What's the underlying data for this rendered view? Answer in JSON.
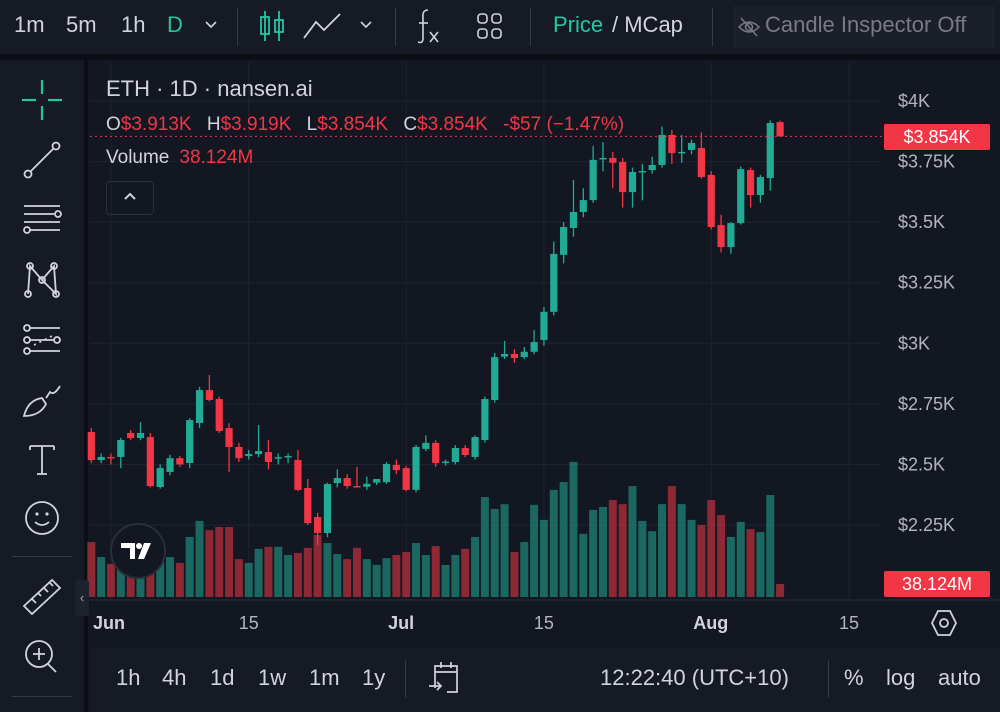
{
  "topbar": {
    "intervals": [
      "1m",
      "5m",
      "1h",
      "D"
    ],
    "active_interval": "D",
    "price_label": "Price",
    "mcap_label": "/ MCap",
    "inspector_label": "Candle Inspector Off",
    "icons": [
      "chevron-down-icon",
      "candlestick-icon",
      "line-chart-icon",
      "chevron-down-icon",
      "function-fx-icon",
      "layout-grid-icon",
      "eye-off-icon"
    ]
  },
  "left_toolbar": {
    "tools": [
      "crosshair",
      "trend-line",
      "horizontal-lines",
      "pattern",
      "fib-retracement",
      "brush",
      "text",
      "emoji",
      "ruler",
      "zoom-in"
    ]
  },
  "legend": {
    "title": "ETH · 1D · nansen.ai",
    "o_label": "O",
    "o_value": "$3.913K",
    "h_label": "H",
    "h_value": "$3.919K",
    "l_label": "L",
    "l_value": "$3.854K",
    "c_label": "C",
    "c_value": "$3.854K",
    "change": "-$57 (−1.47%)",
    "volume_label": "Volume",
    "volume_value": "38.124M",
    "collapse_glyph": "^"
  },
  "price_tag": "$3.854K",
  "volume_tag": "38.124M",
  "colors": {
    "up": "#22ab94",
    "down": "#f23645",
    "background": "#131722",
    "accent": "#22c8a0"
  },
  "bottombar": {
    "ranges": [
      "1h",
      "4h",
      "1d",
      "1w",
      "1m",
      "1y"
    ],
    "time": "12:22:40 (UTC+10)",
    "percent": "%",
    "log": "log",
    "auto": "auto"
  },
  "chart_data": {
    "type": "candlestick",
    "title": "ETH · 1D · nansen.ai",
    "y_ticks": [
      "$4K",
      "$3.75K",
      "$3.5K",
      "$3.25K",
      "$3K",
      "$2.75K",
      "$2.5K",
      "$2.25K"
    ],
    "y_tick_values": [
      4000,
      3750,
      3500,
      3250,
      3000,
      2750,
      2500,
      2250
    ],
    "x_ticks": [
      "Jun",
      "15",
      "Jul",
      "15",
      "Aug",
      "15"
    ],
    "x_tick_dates": [
      "Jun 1",
      "Jun 15",
      "Jul 1",
      "Jul 15",
      "Aug 1",
      "Aug 15"
    ],
    "grid": true,
    "columns": [
      "date",
      "open",
      "high",
      "low",
      "close",
      "volume_M"
    ],
    "candles": [
      [
        "May 30",
        2634,
        2650,
        2505,
        2518,
        161
      ],
      [
        "May 31",
        2518,
        2545,
        2505,
        2531,
        117
      ],
      [
        "Jun 1",
        2531,
        2545,
        2500,
        2528,
        97
      ],
      [
        "Jun 2",
        2531,
        2610,
        2485,
        2601,
        82
      ],
      [
        "Jun 3",
        2630,
        2642,
        2600,
        2609,
        64
      ],
      [
        "Jun 4",
        2609,
        2675,
        2600,
        2630,
        64
      ],
      [
        "Jun 5",
        2613,
        2630,
        2405,
        2411,
        73
      ],
      [
        "Jun 6",
        2407,
        2500,
        2400,
        2485,
        111
      ],
      [
        "Jun 7",
        2469,
        2540,
        2455,
        2526,
        117
      ],
      [
        "Jun 8",
        2526,
        2535,
        2490,
        2500,
        100
      ],
      [
        "Jun 9",
        2506,
        2690,
        2485,
        2683,
        176
      ],
      [
        "Jun 10",
        2671,
        2820,
        2650,
        2807,
        223
      ],
      [
        "Jun 11",
        2807,
        2869,
        2760,
        2766,
        196
      ],
      [
        "Jun 12",
        2770,
        2780,
        2630,
        2638,
        205
      ],
      [
        "Jun 13",
        2650,
        2670,
        2470,
        2572,
        205
      ],
      [
        "Jun 14",
        2572,
        2590,
        2510,
        2526,
        111
      ],
      [
        "Jun 15",
        2535,
        2560,
        2520,
        2543,
        100
      ],
      [
        "Jun 16",
        2543,
        2663,
        2530,
        2555,
        141
      ],
      [
        "Jun 17",
        2551,
        2600,
        2480,
        2510,
        147
      ],
      [
        "Jun 18",
        2526,
        2545,
        2500,
        2530,
        147
      ],
      [
        "Jun 19",
        2531,
        2545,
        2505,
        2535,
        123
      ],
      [
        "Jun 20",
        2518,
        2560,
        2390,
        2395,
        129
      ],
      [
        "Jun 21",
        2403,
        2440,
        2250,
        2258,
        144
      ],
      [
        "Jun 22",
        2283,
        2300,
        2168,
        2217,
        182
      ],
      [
        "Jun 23",
        2217,
        2425,
        2200,
        2419,
        158
      ],
      [
        "Jun 24",
        2423,
        2480,
        2405,
        2444,
        126
      ],
      [
        "Jun 25",
        2444,
        2460,
        2400,
        2411,
        111
      ],
      [
        "Jun 26",
        2411,
        2490,
        2405,
        2408,
        144
      ],
      [
        "Jun 27",
        2408,
        2450,
        2395,
        2420,
        111
      ],
      [
        "Jun 28",
        2425,
        2440,
        2415,
        2440,
        94
      ],
      [
        "Jun 29",
        2427,
        2510,
        2420,
        2502,
        114
      ],
      [
        "Jun 30",
        2498,
        2520,
        2460,
        2477,
        123
      ],
      [
        "Jul 1",
        2485,
        2495,
        2390,
        2395,
        132
      ],
      [
        "Jul 2",
        2395,
        2580,
        2385,
        2572,
        158
      ],
      [
        "Jul 3",
        2564,
        2620,
        2555,
        2589,
        123
      ],
      [
        "Jul 4",
        2589,
        2600,
        2490,
        2506,
        149
      ],
      [
        "Jul 5",
        2506,
        2520,
        2495,
        2512,
        94
      ],
      [
        "Jul 6",
        2510,
        2580,
        2500,
        2568,
        123
      ],
      [
        "Jul 7",
        2568,
        2580,
        2530,
        2539,
        141
      ],
      [
        "Jul 8",
        2531,
        2620,
        2520,
        2613,
        176
      ],
      [
        "Jul 9",
        2601,
        2780,
        2590,
        2770,
        293
      ],
      [
        "Jul 10",
        2766,
        2960,
        2755,
        2943,
        258
      ],
      [
        "Jul 11",
        2945,
        3010,
        2935,
        2956,
        272
      ],
      [
        "Jul 12",
        2956,
        2975,
        2920,
        2939,
        132
      ],
      [
        "Jul 13",
        2943,
        2985,
        2935,
        2965,
        161
      ],
      [
        "Jul 14",
        2965,
        3055,
        2955,
        3005,
        270
      ],
      [
        "Jul 15",
        3014,
        3150,
        2990,
        3130,
        226
      ],
      [
        "Jul 16",
        3130,
        3420,
        3115,
        3369,
        314
      ],
      [
        "Jul 17",
        3365,
        3500,
        3330,
        3480,
        337
      ],
      [
        "Jul 18",
        3476,
        3674,
        3440,
        3542,
        396
      ],
      [
        "Jul 19",
        3542,
        3640,
        3520,
        3591,
        185
      ],
      [
        "Jul 20",
        3591,
        3815,
        3580,
        3757,
        255
      ],
      [
        "Jul 21",
        3760,
        3830,
        3710,
        3765,
        264
      ],
      [
        "Jul 22",
        3765,
        3790,
        3640,
        3745,
        284
      ],
      [
        "Jul 23",
        3748,
        3765,
        3560,
        3624,
        272
      ],
      [
        "Jul 24",
        3624,
        3725,
        3560,
        3707,
        325
      ],
      [
        "Jul 25",
        3707,
        3740,
        3590,
        3711,
        223
      ],
      [
        "Jul 26",
        3715,
        3770,
        3700,
        3736,
        193
      ],
      [
        "Jul 27",
        3736,
        3895,
        3725,
        3860,
        272
      ],
      [
        "Jul 28",
        3860,
        3880,
        3740,
        3785,
        325
      ],
      [
        "Jul 29",
        3785,
        3860,
        3745,
        3790,
        272
      ],
      [
        "Jul 30",
        3798,
        3840,
        3780,
        3827,
        226
      ],
      [
        "Jul 31",
        3806,
        3870,
        3680,
        3686,
        211
      ],
      [
        "Aug 1",
        3695,
        3710,
        3470,
        3480,
        284
      ],
      [
        "Aug 2",
        3488,
        3530,
        3375,
        3397,
        240
      ],
      [
        "Aug 3",
        3397,
        3500,
        3370,
        3496,
        176
      ],
      [
        "Aug 4",
        3496,
        3730,
        3490,
        3719,
        220
      ],
      [
        "Aug 5",
        3715,
        3725,
        3560,
        3612,
        199
      ],
      [
        "Aug 6",
        3612,
        3695,
        3580,
        3686,
        190
      ],
      [
        "Aug 7",
        3682,
        3920,
        3630,
        3909,
        299
      ],
      [
        "Aug 8",
        3913,
        3919,
        3854,
        3854,
        38.124
      ]
    ]
  }
}
